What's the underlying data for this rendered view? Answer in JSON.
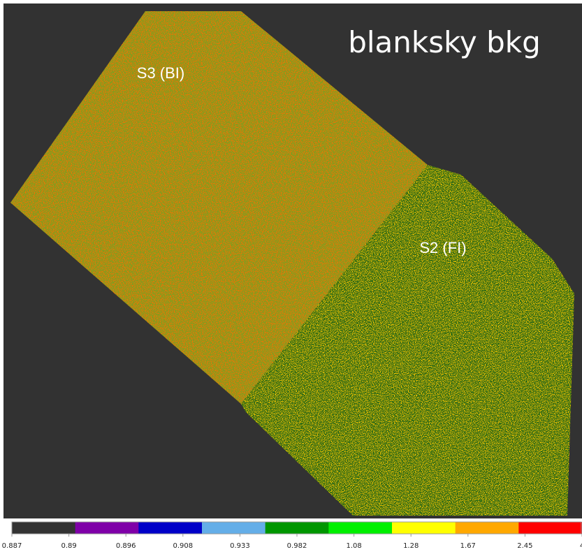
{
  "title": "blanksky bkg",
  "regions": [
    {
      "label": "S3 (BI)"
    },
    {
      "label": "S2 (FI)"
    }
  ],
  "colorbar": {
    "colors": [
      "#333333",
      "#7f00a8",
      "#0000c8",
      "#64aee8",
      "#009600",
      "#00f000",
      "#ffff00",
      "#ffa800",
      "#ff0000"
    ],
    "labels": [
      "0.887",
      "0.89",
      "0.896",
      "0.908",
      "0.933",
      "0.982",
      "1.08",
      "1.28",
      "1.67",
      "2.45",
      "4"
    ]
  }
}
